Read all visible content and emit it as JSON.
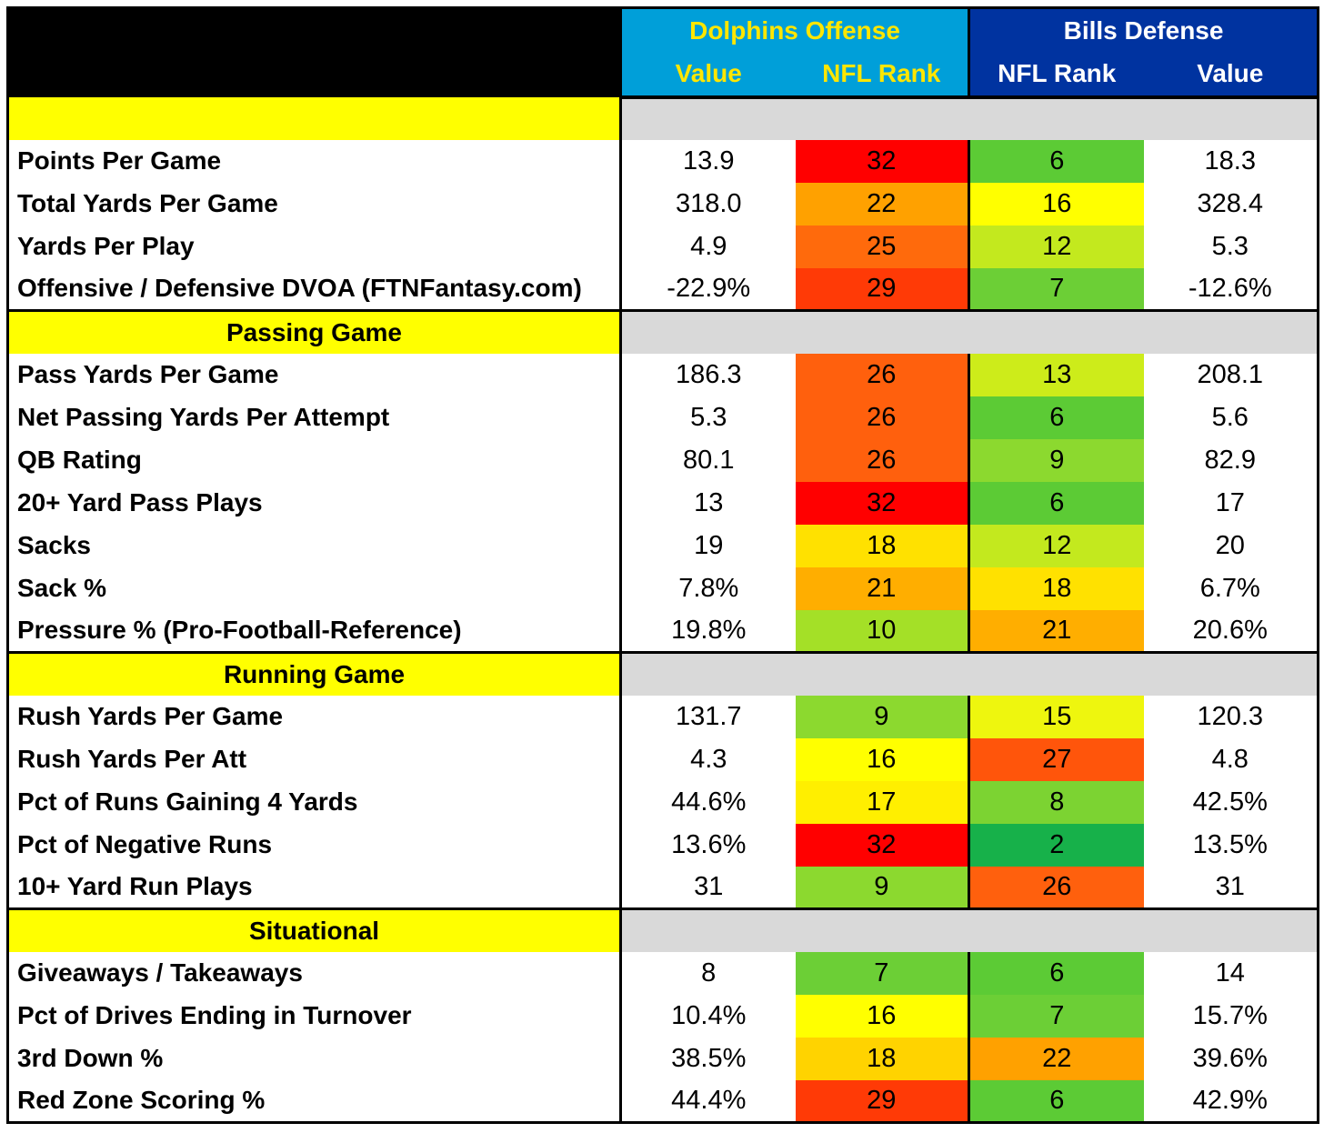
{
  "header": {
    "dolphins_title": "Dolphins Offense",
    "bills_title": "Bills Defense",
    "col_value": "Value",
    "col_rank": "NFL Rank"
  },
  "colors": {
    "header_black": "#000000",
    "dolphins_blue": "#009fd9",
    "dolphins_text": "#ffe600",
    "bills_blue": "#0033a0",
    "bills_text": "#ffffff",
    "section_yellow": "#ffff00",
    "section_gray": "#d9d9d9"
  },
  "sections": [
    {
      "title": "",
      "rows": [
        {
          "label": "Points Per Game",
          "off_value": "13.9",
          "off_rank": "32",
          "off_color": "#ff0000",
          "def_rank": "6",
          "def_color": "#5ccb35",
          "def_value": "18.3"
        },
        {
          "label": "Total Yards Per Game",
          "off_value": "318.0",
          "off_rank": "22",
          "off_color": "#ffa100",
          "def_rank": "16",
          "def_color": "#ffff00",
          "def_value": "328.4"
        },
        {
          "label": "Yards Per Play",
          "off_value": "4.9",
          "off_rank": "25",
          "off_color": "#ff6a0c",
          "def_rank": "12",
          "def_color": "#c3e91e",
          "def_value": "5.3"
        },
        {
          "label": "Offensive / Defensive DVOA (FTNFantasy.com)",
          "off_value": "-22.9%",
          "off_rank": "29",
          "off_color": "#ff3a06",
          "def_rank": "7",
          "def_color": "#6ccf36",
          "def_value": "-12.6%"
        }
      ]
    },
    {
      "title": "Passing Game",
      "rows": [
        {
          "label": "Pass Yards Per Game",
          "off_value": "186.3",
          "off_rank": "26",
          "off_color": "#ff600d",
          "def_rank": "13",
          "def_color": "#cdec1a",
          "def_value": "208.1"
        },
        {
          "label": "Net Passing Yards Per Attempt",
          "off_value": "5.3",
          "off_rank": "26",
          "off_color": "#ff600d",
          "def_rank": "6",
          "def_color": "#5ccb35",
          "def_value": "5.6"
        },
        {
          "label": "QB Rating",
          "off_value": "80.1",
          "off_rank": "26",
          "off_color": "#ff600d",
          "def_rank": "9",
          "def_color": "#8cd92f",
          "def_value": "82.9"
        },
        {
          "label": "20+ Yard Pass Plays",
          "off_value": "13",
          "off_rank": "32",
          "off_color": "#ff0000",
          "def_rank": "6",
          "def_color": "#5ccb35",
          "def_value": "17"
        },
        {
          "label": "Sacks",
          "off_value": "19",
          "off_rank": "18",
          "off_color": "#ffe100",
          "def_rank": "12",
          "def_color": "#c3e91e",
          "def_value": "20"
        },
        {
          "label": "Sack %",
          "off_value": "7.8%",
          "off_rank": "21",
          "off_color": "#ffae00",
          "def_rank": "18",
          "def_color": "#ffe100",
          "def_value": "6.7%"
        },
        {
          "label": "Pressure % (Pro-Football-Reference)",
          "off_value": "19.8%",
          "off_rank": "10",
          "off_color": "#a4e027",
          "def_rank": "21",
          "def_color": "#ffae00",
          "def_value": "20.6%"
        }
      ]
    },
    {
      "title": "Running Game",
      "rows": [
        {
          "label": "Rush Yards Per Game",
          "off_value": "131.7",
          "off_rank": "9",
          "off_color": "#8cd92f",
          "def_rank": "15",
          "def_color": "#eef60e",
          "def_value": "120.3"
        },
        {
          "label": "Rush Yards Per Att",
          "off_value": "4.3",
          "off_rank": "16",
          "off_color": "#ffff00",
          "def_rank": "27",
          "def_color": "#ff550b",
          "def_value": "4.8"
        },
        {
          "label": "Pct of Runs Gaining 4 Yards",
          "off_value": "44.6%",
          "off_rank": "17",
          "off_color": "#ffef00",
          "def_rank": "8",
          "def_color": "#7cd332",
          "def_value": "42.5%"
        },
        {
          "label": "Pct of Negative Runs",
          "off_value": "13.6%",
          "off_rank": "32",
          "off_color": "#ff0000",
          "def_rank": "2",
          "def_color": "#17b14a",
          "def_value": "13.5%"
        },
        {
          "label": "10+ Yard Run Plays",
          "off_value": "31",
          "off_rank": "9",
          "off_color": "#8cd92f",
          "def_rank": "26",
          "def_color": "#ff600d",
          "def_value": "31"
        }
      ]
    },
    {
      "title": "Situational",
      "rows": [
        {
          "label": "Giveaways / Takeaways",
          "off_value": "8",
          "off_rank": "7",
          "off_color": "#6ccf36",
          "def_rank": "6",
          "def_color": "#5ccb35",
          "def_value": "14"
        },
        {
          "label": "Pct of Drives Ending in Turnover",
          "off_value": "10.4%",
          "off_rank": "16",
          "off_color": "#ffff00",
          "def_rank": "7",
          "def_color": "#6ccf36",
          "def_value": "15.7%"
        },
        {
          "label": "3rd Down %",
          "off_value": "38.5%",
          "off_rank": "18",
          "off_color": "#ffd300",
          "def_rank": "22",
          "def_color": "#ffa100",
          "def_value": "39.6%"
        },
        {
          "label": "Red Zone Scoring %",
          "off_value": "44.4%",
          "off_rank": "29",
          "off_color": "#ff3a06",
          "def_rank": "6",
          "def_color": "#5ccb35",
          "def_value": "42.9%"
        }
      ]
    }
  ]
}
